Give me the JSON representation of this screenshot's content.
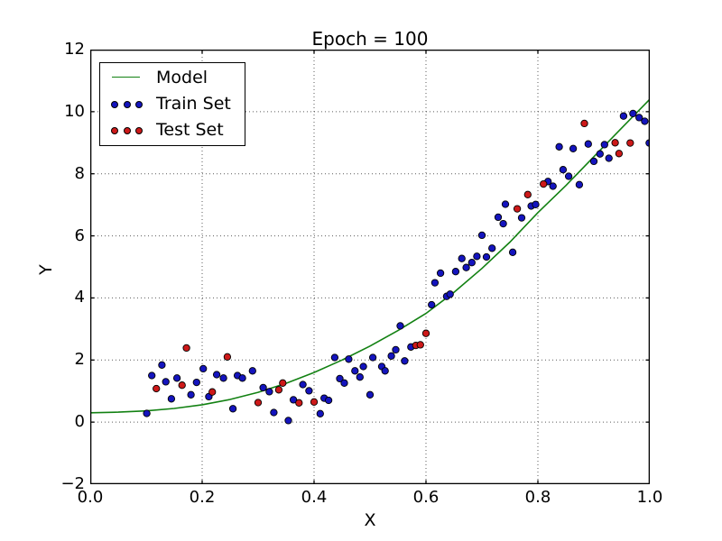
{
  "figure": {
    "background": "#ffffff"
  },
  "chart_data": {
    "type": "scatter",
    "title": "Epoch = 100",
    "xlabel": "X",
    "ylabel": "Y",
    "xlim": [
      0.0,
      1.0
    ],
    "ylim": [
      -2,
      12
    ],
    "grid": true,
    "grid_style": "dotted",
    "xticks": {
      "values": [
        0.0,
        0.2,
        0.4,
        0.6,
        0.8,
        1.0
      ],
      "labels": [
        "0.0",
        "0.2",
        "0.4",
        "0.6",
        "0.8",
        "1.0"
      ]
    },
    "yticks": {
      "values": [
        -2,
        0,
        2,
        4,
        6,
        8,
        10,
        12
      ],
      "labels": [
        "−2",
        "0",
        "2",
        "4",
        "6",
        "8",
        "10",
        "12"
      ]
    },
    "colors": {
      "model_line": "#128112",
      "train_fill": "#1414be",
      "test_fill": "#cd1919",
      "marker_edge": "#000000",
      "grid": "#333333",
      "frame": "#000000"
    },
    "legend": {
      "position": "upper-left",
      "entries": [
        {
          "label": "Model",
          "type": "line",
          "color": "#128112"
        },
        {
          "label": "Train Set",
          "type": "scatter",
          "color": "#1414be"
        },
        {
          "label": "Test Set",
          "type": "scatter",
          "color": "#cd1919"
        }
      ]
    },
    "series": [
      {
        "name": "Model",
        "type": "line",
        "color": "#128112",
        "x": [
          0.0,
          0.05,
          0.1,
          0.15,
          0.2,
          0.25,
          0.3,
          0.35,
          0.4,
          0.45,
          0.5,
          0.55,
          0.6,
          0.65,
          0.7,
          0.75,
          0.8,
          0.85,
          0.9,
          0.95,
          1.0
        ],
        "y": [
          0.3,
          0.32,
          0.36,
          0.44,
          0.56,
          0.73,
          0.96,
          1.25,
          1.6,
          2.0,
          2.45,
          2.95,
          3.5,
          4.18,
          4.95,
          5.8,
          6.75,
          7.62,
          8.55,
          9.48,
          10.4
        ]
      },
      {
        "name": "Train Set",
        "type": "scatter",
        "color": "#1414be",
        "points": [
          [
            0.101,
            0.28
          ],
          [
            0.11,
            1.5
          ],
          [
            0.128,
            1.84
          ],
          [
            0.135,
            1.3
          ],
          [
            0.145,
            0.75
          ],
          [
            0.155,
            1.42
          ],
          [
            0.18,
            0.88
          ],
          [
            0.19,
            1.28
          ],
          [
            0.202,
            1.72
          ],
          [
            0.212,
            0.82
          ],
          [
            0.226,
            1.53
          ],
          [
            0.238,
            1.42
          ],
          [
            0.255,
            0.43
          ],
          [
            0.263,
            1.5
          ],
          [
            0.272,
            1.42
          ],
          [
            0.29,
            1.65
          ],
          [
            0.309,
            1.11
          ],
          [
            0.32,
            0.98
          ],
          [
            0.328,
            0.31
          ],
          [
            0.354,
            0.05
          ],
          [
            0.363,
            0.72
          ],
          [
            0.38,
            1.21
          ],
          [
            0.391,
            1.01
          ],
          [
            0.411,
            0.27
          ],
          [
            0.418,
            0.77
          ],
          [
            0.426,
            0.7
          ],
          [
            0.437,
            2.08
          ],
          [
            0.446,
            1.4
          ],
          [
            0.454,
            1.26
          ],
          [
            0.462,
            2.03
          ],
          [
            0.473,
            1.65
          ],
          [
            0.482,
            1.45
          ],
          [
            0.488,
            1.79
          ],
          [
            0.5,
            0.88
          ],
          [
            0.505,
            2.08
          ],
          [
            0.521,
            1.79
          ],
          [
            0.527,
            1.65
          ],
          [
            0.538,
            2.13
          ],
          [
            0.546,
            2.33
          ],
          [
            0.554,
            3.1
          ],
          [
            0.562,
            1.97
          ],
          [
            0.573,
            2.42
          ],
          [
            0.61,
            3.78
          ],
          [
            0.616,
            4.49
          ],
          [
            0.626,
            4.8
          ],
          [
            0.637,
            4.05
          ],
          [
            0.643,
            4.12
          ],
          [
            0.653,
            4.85
          ],
          [
            0.664,
            5.27
          ],
          [
            0.672,
            4.98
          ],
          [
            0.682,
            5.14
          ],
          [
            0.691,
            5.34
          ],
          [
            0.7,
            6.02
          ],
          [
            0.708,
            5.32
          ],
          [
            0.718,
            5.6
          ],
          [
            0.729,
            6.6
          ],
          [
            0.738,
            6.39
          ],
          [
            0.742,
            7.02
          ],
          [
            0.755,
            5.47
          ],
          [
            0.771,
            6.58
          ],
          [
            0.788,
            6.96
          ],
          [
            0.796,
            7.01
          ],
          [
            0.818,
            7.75
          ],
          [
            0.827,
            7.6
          ],
          [
            0.838,
            8.87
          ],
          [
            0.845,
            8.13
          ],
          [
            0.855,
            7.92
          ],
          [
            0.863,
            8.81
          ],
          [
            0.874,
            7.65
          ],
          [
            0.89,
            8.96
          ],
          [
            0.9,
            8.4
          ],
          [
            0.911,
            8.64
          ],
          [
            0.919,
            8.94
          ],
          [
            0.927,
            8.5
          ],
          [
            0.953,
            9.86
          ],
          [
            0.97,
            9.94
          ],
          [
            0.981,
            9.81
          ],
          [
            0.991,
            9.69
          ],
          [
            0.999,
            8.99
          ]
        ]
      },
      {
        "name": "Test Set",
        "type": "scatter",
        "color": "#cd1919",
        "points": [
          [
            0.118,
            1.08
          ],
          [
            0.164,
            1.19
          ],
          [
            0.172,
            2.39
          ],
          [
            0.218,
            0.97
          ],
          [
            0.245,
            2.1
          ],
          [
            0.3,
            0.63
          ],
          [
            0.337,
            1.04
          ],
          [
            0.344,
            1.26
          ],
          [
            0.373,
            0.62
          ],
          [
            0.4,
            0.65
          ],
          [
            0.582,
            2.47
          ],
          [
            0.59,
            2.49
          ],
          [
            0.6,
            2.86
          ],
          [
            0.763,
            6.87
          ],
          [
            0.782,
            7.33
          ],
          [
            0.81,
            7.67
          ],
          [
            0.883,
            9.62
          ],
          [
            0.938,
            9.0
          ],
          [
            0.945,
            8.65
          ],
          [
            0.965,
            8.99
          ]
        ]
      }
    ]
  }
}
